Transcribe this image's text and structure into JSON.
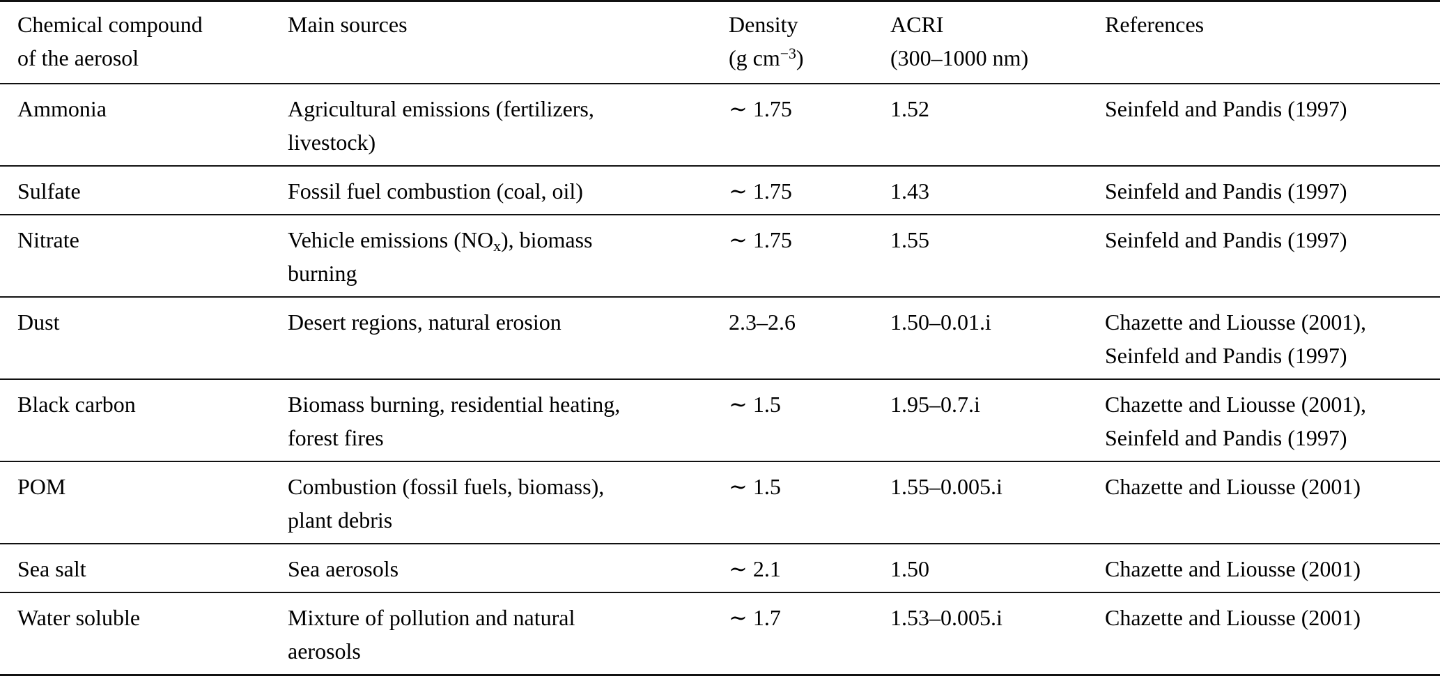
{
  "table": {
    "columns": [
      {
        "key": "compound",
        "lines": [
          [
            "Chemical compound"
          ],
          [
            "of the aerosol"
          ]
        ]
      },
      {
        "key": "sources",
        "lines": [
          [
            "Main sources"
          ]
        ]
      },
      {
        "key": "density",
        "lines": [
          [
            "Density"
          ],
          [
            "(g cm",
            {
              "sup": "−3"
            },
            ")"
          ]
        ]
      },
      {
        "key": "acri",
        "lines": [
          [
            "ACRI"
          ],
          [
            "(300–1000 nm)"
          ]
        ]
      },
      {
        "key": "references",
        "lines": [
          [
            "References"
          ]
        ]
      }
    ],
    "rows": [
      {
        "compound": [
          [
            "Ammonia"
          ]
        ],
        "sources": [
          [
            "Agricultural emissions (fertilizers,"
          ],
          [
            "livestock)"
          ]
        ],
        "density": [
          [
            "∼ 1.75"
          ]
        ],
        "acri": [
          [
            "1.52"
          ]
        ],
        "references": [
          [
            "Seinfeld and Pandis (1997)"
          ]
        ]
      },
      {
        "compound": [
          [
            "Sulfate"
          ]
        ],
        "sources": [
          [
            "Fossil fuel combustion (coal, oil)"
          ]
        ],
        "density": [
          [
            "∼ 1.75"
          ]
        ],
        "acri": [
          [
            "1.43"
          ]
        ],
        "references": [
          [
            "Seinfeld and Pandis (1997)"
          ]
        ]
      },
      {
        "compound": [
          [
            "Nitrate"
          ]
        ],
        "sources": [
          [
            "Vehicle emissions (NO",
            {
              "sub": "x"
            },
            "), biomass"
          ],
          [
            "burning"
          ]
        ],
        "density": [
          [
            "∼ 1.75"
          ]
        ],
        "acri": [
          [
            "1.55"
          ]
        ],
        "references": [
          [
            "Seinfeld and Pandis (1997)"
          ]
        ]
      },
      {
        "compound": [
          [
            "Dust"
          ]
        ],
        "sources": [
          [
            "Desert regions, natural erosion"
          ]
        ],
        "density": [
          [
            "2.3–2.6"
          ]
        ],
        "acri": [
          [
            "1.50–0.01.i"
          ]
        ],
        "references": [
          [
            "Chazette and Liousse (2001),"
          ],
          [
            "Seinfeld and Pandis (1997)"
          ]
        ]
      },
      {
        "compound": [
          [
            "Black carbon"
          ]
        ],
        "sources": [
          [
            "Biomass burning, residential heating,"
          ],
          [
            "forest fires"
          ]
        ],
        "density": [
          [
            "∼ 1.5"
          ]
        ],
        "acri": [
          [
            "1.95–0.7.i"
          ]
        ],
        "references": [
          [
            "Chazette and Liousse (2001),"
          ],
          [
            "Seinfeld and Pandis (1997)"
          ]
        ]
      },
      {
        "compound": [
          [
            "POM"
          ]
        ],
        "sources": [
          [
            "Combustion (fossil fuels, biomass),"
          ],
          [
            "plant debris"
          ]
        ],
        "density": [
          [
            "∼ 1.5"
          ]
        ],
        "acri": [
          [
            "1.55–0.005.i"
          ]
        ],
        "references": [
          [
            "Chazette and Liousse (2001)"
          ]
        ]
      },
      {
        "compound": [
          [
            "Sea salt"
          ]
        ],
        "sources": [
          [
            "Sea aerosols"
          ]
        ],
        "density": [
          [
            "∼ 2.1"
          ]
        ],
        "acri": [
          [
            "1.50"
          ]
        ],
        "references": [
          [
            "Chazette and Liousse (2001)"
          ]
        ]
      },
      {
        "compound": [
          [
            "Water soluble"
          ]
        ],
        "sources": [
          [
            "Mixture of pollution and natural"
          ],
          [
            "aerosols"
          ]
        ],
        "density": [
          [
            "∼ 1.7"
          ]
        ],
        "acri": [
          [
            "1.53–0.005.i"
          ]
        ],
        "references": [
          [
            "Chazette and Liousse (2001)"
          ]
        ]
      }
    ],
    "colors": {
      "text": "#000000",
      "rule": "#111111",
      "background": "#ffffff"
    }
  }
}
